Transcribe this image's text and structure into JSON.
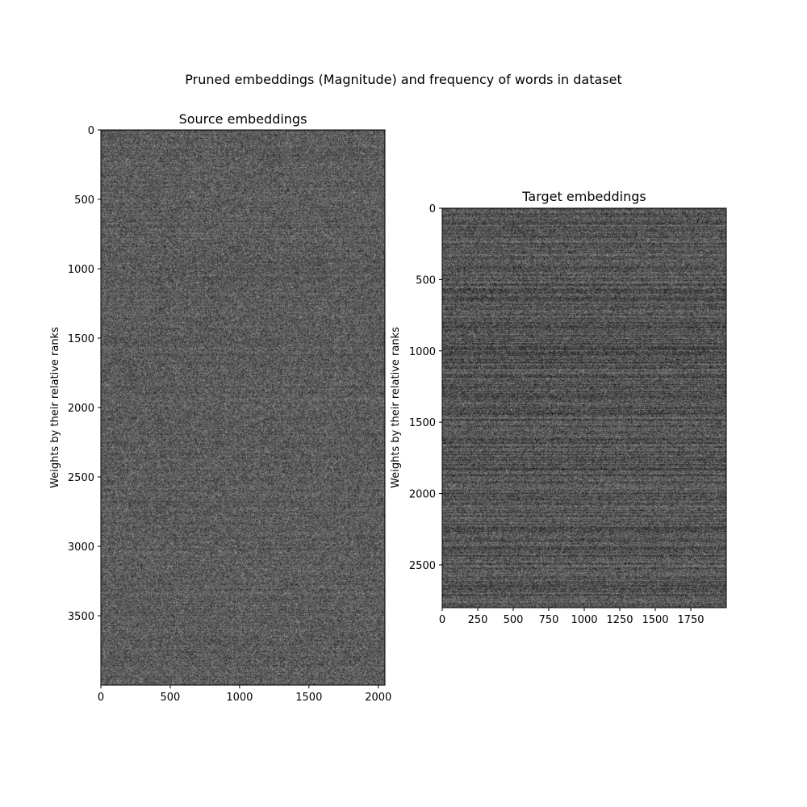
{
  "figure": {
    "suptitle": "Pruned embeddings (Magnitude) and frequency of words in dataset"
  },
  "chart_data": [
    {
      "type": "heatmap",
      "colormap": "gray",
      "title": "Source embeddings",
      "xlabel": "",
      "ylabel": "Weights by their relative ranks",
      "n_cols": 2048,
      "n_rows": 4000,
      "xlim": [
        0,
        2048
      ],
      "ylim": [
        4000,
        0
      ],
      "xticks": [
        0,
        500,
        1000,
        1500,
        2000
      ],
      "xtick_labels": [
        "0",
        "500",
        "1000",
        "1500",
        "2000"
      ],
      "yticks": [
        0,
        500,
        1000,
        1500,
        2000,
        2500,
        3000,
        3500
      ],
      "ytick_labels": [
        "0",
        "500",
        "1000",
        "1500",
        "2000",
        "2500",
        "3000",
        "3500"
      ],
      "mean_intensity": 0.36,
      "noise_spread": 0.2,
      "row_banding": 0.03
    },
    {
      "type": "heatmap",
      "colormap": "gray",
      "title": "Target embeddings",
      "xlabel": "",
      "ylabel": "Weights by their relative ranks",
      "n_cols": 2000,
      "n_rows": 2800,
      "xlim": [
        0,
        2000
      ],
      "ylim": [
        2800,
        0
      ],
      "xticks": [
        0,
        250,
        500,
        750,
        1000,
        1250,
        1500,
        1750
      ],
      "xtick_labels": [
        "0",
        "250",
        "500",
        "750",
        "1000",
        "1250",
        "1500",
        "1750"
      ],
      "yticks": [
        0,
        500,
        1000,
        1500,
        2000,
        2500
      ],
      "ytick_labels": [
        "0",
        "500",
        "1000",
        "1500",
        "2000",
        "2500"
      ],
      "mean_intensity": 0.33,
      "noise_spread": 0.2,
      "row_banding": 0.08
    }
  ]
}
